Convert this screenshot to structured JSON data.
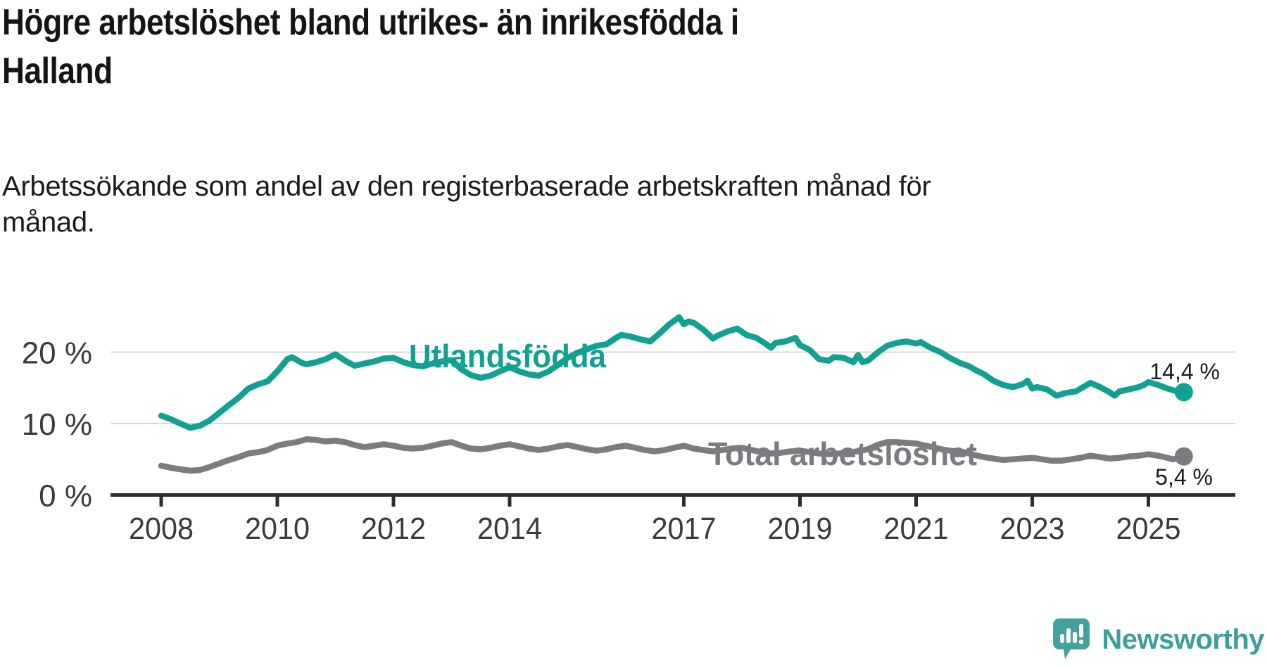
{
  "header": {
    "title": "Högre arbetslöshet bland utrikes- än inrikesfödda i Halland",
    "title_lines": [
      "Högre arbetslöshet bland utrikes- än inrikesfödda i",
      "Halland"
    ],
    "subtitle": "Arbetssökande som andel av den registerbaserade arbetskraften månad för månad.",
    "subtitle_lines": [
      "Arbetssökande som andel av den registerbaserade arbetskraften månad för",
      "månad."
    ]
  },
  "branding": {
    "logo_text": "Newsworthy",
    "logo_icon": "newsworthy-speech-bubble-bar-chart-icon",
    "logo_color": "#43a09c",
    "logo_text_color": "#3f9e9a"
  },
  "colors": {
    "accent_teal": "#12a092",
    "line_gray": "#7b7b80",
    "gridline": "#d9d9d9",
    "axis": "#2d2d2d",
    "tick_text": "#3a3a3a",
    "value_text": "#1a1a1a"
  },
  "chart_data": {
    "type": "line",
    "title": "Högre arbetslöshet bland utrikes- än inrikesfödda i Halland",
    "subtitle": "Arbetssökande som andel av den registerbaserade arbetskraften månad för månad.",
    "xlabel": "",
    "ylabel": "",
    "unit": "%",
    "grid": true,
    "legend_position": "inline-labels",
    "x_axis": {
      "range": [
        2007.1,
        2026.5
      ],
      "ticks": [
        2008,
        2010,
        2012,
        2014,
        2017,
        2019,
        2021,
        2023,
        2025
      ]
    },
    "y_axis": {
      "range": [
        0,
        27
      ],
      "gridlines": [
        10,
        20
      ],
      "ticks": [
        {
          "value": 0,
          "label": "0 %"
        },
        {
          "value": 10,
          "label": "10 %"
        },
        {
          "value": 20,
          "label": "20 %"
        }
      ]
    },
    "series": [
      {
        "name": "Utlandsfödda",
        "slug": "utlandsfodda",
        "color": "#12a092",
        "end_value": 14.4,
        "end_label": "14,4 %",
        "points": [
          [
            2008.0,
            11.1
          ],
          [
            2008.17,
            10.6
          ],
          [
            2008.33,
            10.0
          ],
          [
            2008.5,
            9.4
          ],
          [
            2008.67,
            9.7
          ],
          [
            2008.83,
            10.4
          ],
          [
            2009.0,
            11.5
          ],
          [
            2009.17,
            12.6
          ],
          [
            2009.33,
            13.6
          ],
          [
            2009.5,
            14.9
          ],
          [
            2009.67,
            15.5
          ],
          [
            2009.83,
            15.9
          ],
          [
            2010.0,
            17.3
          ],
          [
            2010.17,
            19.0
          ],
          [
            2010.25,
            19.3
          ],
          [
            2010.42,
            18.5
          ],
          [
            2010.5,
            18.3
          ],
          [
            2010.67,
            18.6
          ],
          [
            2010.83,
            19.0
          ],
          [
            2011.0,
            19.7
          ],
          [
            2011.17,
            18.8
          ],
          [
            2011.33,
            18.1
          ],
          [
            2011.5,
            18.4
          ],
          [
            2011.67,
            18.7
          ],
          [
            2011.83,
            19.1
          ],
          [
            2012.0,
            19.2
          ],
          [
            2012.17,
            18.6
          ],
          [
            2012.33,
            18.2
          ],
          [
            2012.5,
            18.0
          ],
          [
            2012.67,
            18.4
          ],
          [
            2012.83,
            18.7
          ],
          [
            2013.0,
            18.9
          ],
          [
            2013.17,
            17.6
          ],
          [
            2013.33,
            16.8
          ],
          [
            2013.5,
            16.4
          ],
          [
            2013.67,
            16.7
          ],
          [
            2013.83,
            17.3
          ],
          [
            2014.0,
            17.9
          ],
          [
            2014.17,
            17.3
          ],
          [
            2014.33,
            16.9
          ],
          [
            2014.5,
            16.7
          ],
          [
            2014.67,
            17.3
          ],
          [
            2014.83,
            18.2
          ],
          [
            2015.0,
            19.2
          ],
          [
            2015.17,
            19.9
          ],
          [
            2015.33,
            20.4
          ],
          [
            2015.5,
            20.9
          ],
          [
            2015.67,
            21.1
          ],
          [
            2015.83,
            22.0
          ],
          [
            2015.92,
            22.4
          ],
          [
            2016.08,
            22.2
          ],
          [
            2016.25,
            21.8
          ],
          [
            2016.42,
            21.5
          ],
          [
            2016.58,
            22.6
          ],
          [
            2016.75,
            23.9
          ],
          [
            2016.92,
            24.9
          ],
          [
            2017.0,
            23.9
          ],
          [
            2017.08,
            24.3
          ],
          [
            2017.17,
            24.1
          ],
          [
            2017.33,
            23.2
          ],
          [
            2017.5,
            21.9
          ],
          [
            2017.58,
            22.3
          ],
          [
            2017.75,
            22.9
          ],
          [
            2017.92,
            23.3
          ],
          [
            2018.08,
            22.4
          ],
          [
            2018.25,
            22.0
          ],
          [
            2018.42,
            21.1
          ],
          [
            2018.5,
            20.6
          ],
          [
            2018.58,
            21.3
          ],
          [
            2018.75,
            21.5
          ],
          [
            2018.92,
            22.0
          ],
          [
            2019.0,
            21.0
          ],
          [
            2019.17,
            20.3
          ],
          [
            2019.33,
            19.0
          ],
          [
            2019.5,
            18.8
          ],
          [
            2019.58,
            19.3
          ],
          [
            2019.75,
            19.2
          ],
          [
            2019.92,
            18.6
          ],
          [
            2020.0,
            19.6
          ],
          [
            2020.08,
            18.6
          ],
          [
            2020.17,
            18.8
          ],
          [
            2020.33,
            19.9
          ],
          [
            2020.5,
            20.9
          ],
          [
            2020.67,
            21.3
          ],
          [
            2020.83,
            21.5
          ],
          [
            2021.0,
            21.2
          ],
          [
            2021.08,
            21.4
          ],
          [
            2021.25,
            20.6
          ],
          [
            2021.42,
            20.0
          ],
          [
            2021.58,
            19.2
          ],
          [
            2021.75,
            18.5
          ],
          [
            2021.92,
            18.0
          ],
          [
            2022.0,
            17.6
          ],
          [
            2022.17,
            16.9
          ],
          [
            2022.33,
            16.0
          ],
          [
            2022.5,
            15.4
          ],
          [
            2022.67,
            15.1
          ],
          [
            2022.83,
            15.5
          ],
          [
            2022.92,
            16.0
          ],
          [
            2023.0,
            14.9
          ],
          [
            2023.08,
            15.1
          ],
          [
            2023.25,
            14.8
          ],
          [
            2023.42,
            13.9
          ],
          [
            2023.58,
            14.3
          ],
          [
            2023.75,
            14.5
          ],
          [
            2023.92,
            15.3
          ],
          [
            2024.0,
            15.7
          ],
          [
            2024.17,
            15.1
          ],
          [
            2024.33,
            14.4
          ],
          [
            2024.42,
            13.9
          ],
          [
            2024.5,
            14.5
          ],
          [
            2024.67,
            14.8
          ],
          [
            2024.83,
            15.1
          ],
          [
            2024.92,
            15.4
          ],
          [
            2025.0,
            15.8
          ],
          [
            2025.17,
            15.4
          ],
          [
            2025.33,
            14.9
          ],
          [
            2025.5,
            14.5
          ],
          [
            2025.61,
            14.4
          ]
        ]
      },
      {
        "name": "Total arbetslöshet",
        "slug": "total-arbetsloshet",
        "color": "#7b7b80",
        "end_value": 5.4,
        "end_label": "5,4 %",
        "points": [
          [
            2008.0,
            4.1
          ],
          [
            2008.17,
            3.8
          ],
          [
            2008.33,
            3.6
          ],
          [
            2008.5,
            3.4
          ],
          [
            2008.67,
            3.5
          ],
          [
            2008.83,
            3.9
          ],
          [
            2009.0,
            4.4
          ],
          [
            2009.17,
            4.9
          ],
          [
            2009.33,
            5.3
          ],
          [
            2009.5,
            5.8
          ],
          [
            2009.67,
            6.0
          ],
          [
            2009.83,
            6.3
          ],
          [
            2010.0,
            6.9
          ],
          [
            2010.17,
            7.2
          ],
          [
            2010.33,
            7.4
          ],
          [
            2010.5,
            7.8
          ],
          [
            2010.67,
            7.7
          ],
          [
            2010.83,
            7.5
          ],
          [
            2011.0,
            7.6
          ],
          [
            2011.17,
            7.4
          ],
          [
            2011.33,
            7.0
          ],
          [
            2011.5,
            6.7
          ],
          [
            2011.67,
            6.9
          ],
          [
            2011.83,
            7.1
          ],
          [
            2012.0,
            6.9
          ],
          [
            2012.17,
            6.6
          ],
          [
            2012.33,
            6.5
          ],
          [
            2012.5,
            6.6
          ],
          [
            2012.67,
            6.9
          ],
          [
            2012.83,
            7.2
          ],
          [
            2013.0,
            7.4
          ],
          [
            2013.17,
            6.9
          ],
          [
            2013.33,
            6.5
          ],
          [
            2013.5,
            6.4
          ],
          [
            2013.67,
            6.6
          ],
          [
            2013.83,
            6.9
          ],
          [
            2014.0,
            7.1
          ],
          [
            2014.17,
            6.8
          ],
          [
            2014.33,
            6.5
          ],
          [
            2014.5,
            6.3
          ],
          [
            2014.67,
            6.5
          ],
          [
            2014.83,
            6.8
          ],
          [
            2015.0,
            7.0
          ],
          [
            2015.17,
            6.7
          ],
          [
            2015.33,
            6.4
          ],
          [
            2015.5,
            6.2
          ],
          [
            2015.67,
            6.4
          ],
          [
            2015.83,
            6.7
          ],
          [
            2016.0,
            6.9
          ],
          [
            2016.17,
            6.6
          ],
          [
            2016.33,
            6.3
          ],
          [
            2016.5,
            6.1
          ],
          [
            2016.67,
            6.3
          ],
          [
            2016.83,
            6.6
          ],
          [
            2017.0,
            6.9
          ],
          [
            2017.17,
            6.5
          ],
          [
            2017.33,
            6.3
          ],
          [
            2017.5,
            6.1
          ],
          [
            2017.67,
            6.3
          ],
          [
            2017.83,
            6.5
          ],
          [
            2018.0,
            6.6
          ],
          [
            2018.17,
            6.3
          ],
          [
            2018.33,
            6.0
          ],
          [
            2018.5,
            5.8
          ],
          [
            2018.67,
            5.9
          ],
          [
            2018.83,
            6.1
          ],
          [
            2019.0,
            6.2
          ],
          [
            2019.17,
            6.0
          ],
          [
            2019.33,
            5.8
          ],
          [
            2019.5,
            5.7
          ],
          [
            2019.67,
            5.8
          ],
          [
            2019.83,
            6.0
          ],
          [
            2020.0,
            6.1
          ],
          [
            2020.17,
            6.4
          ],
          [
            2020.33,
            7.0
          ],
          [
            2020.5,
            7.4
          ],
          [
            2020.67,
            7.4
          ],
          [
            2020.83,
            7.3
          ],
          [
            2021.0,
            7.2
          ],
          [
            2021.17,
            6.9
          ],
          [
            2021.33,
            6.6
          ],
          [
            2021.5,
            6.3
          ],
          [
            2021.67,
            6.1
          ],
          [
            2021.83,
            6.0
          ],
          [
            2022.0,
            5.6
          ],
          [
            2022.17,
            5.3
          ],
          [
            2022.33,
            5.1
          ],
          [
            2022.5,
            4.9
          ],
          [
            2022.67,
            5.0
          ],
          [
            2022.83,
            5.1
          ],
          [
            2023.0,
            5.2
          ],
          [
            2023.17,
            5.0
          ],
          [
            2023.33,
            4.8
          ],
          [
            2023.5,
            4.8
          ],
          [
            2023.67,
            5.0
          ],
          [
            2023.83,
            5.2
          ],
          [
            2024.0,
            5.5
          ],
          [
            2024.17,
            5.3
          ],
          [
            2024.33,
            5.1
          ],
          [
            2024.5,
            5.2
          ],
          [
            2024.67,
            5.4
          ],
          [
            2024.83,
            5.5
          ],
          [
            2025.0,
            5.7
          ],
          [
            2025.17,
            5.5
          ],
          [
            2025.33,
            5.2
          ],
          [
            2025.42,
            5.0
          ],
          [
            2025.5,
            5.1
          ],
          [
            2025.61,
            5.4
          ]
        ]
      }
    ]
  }
}
